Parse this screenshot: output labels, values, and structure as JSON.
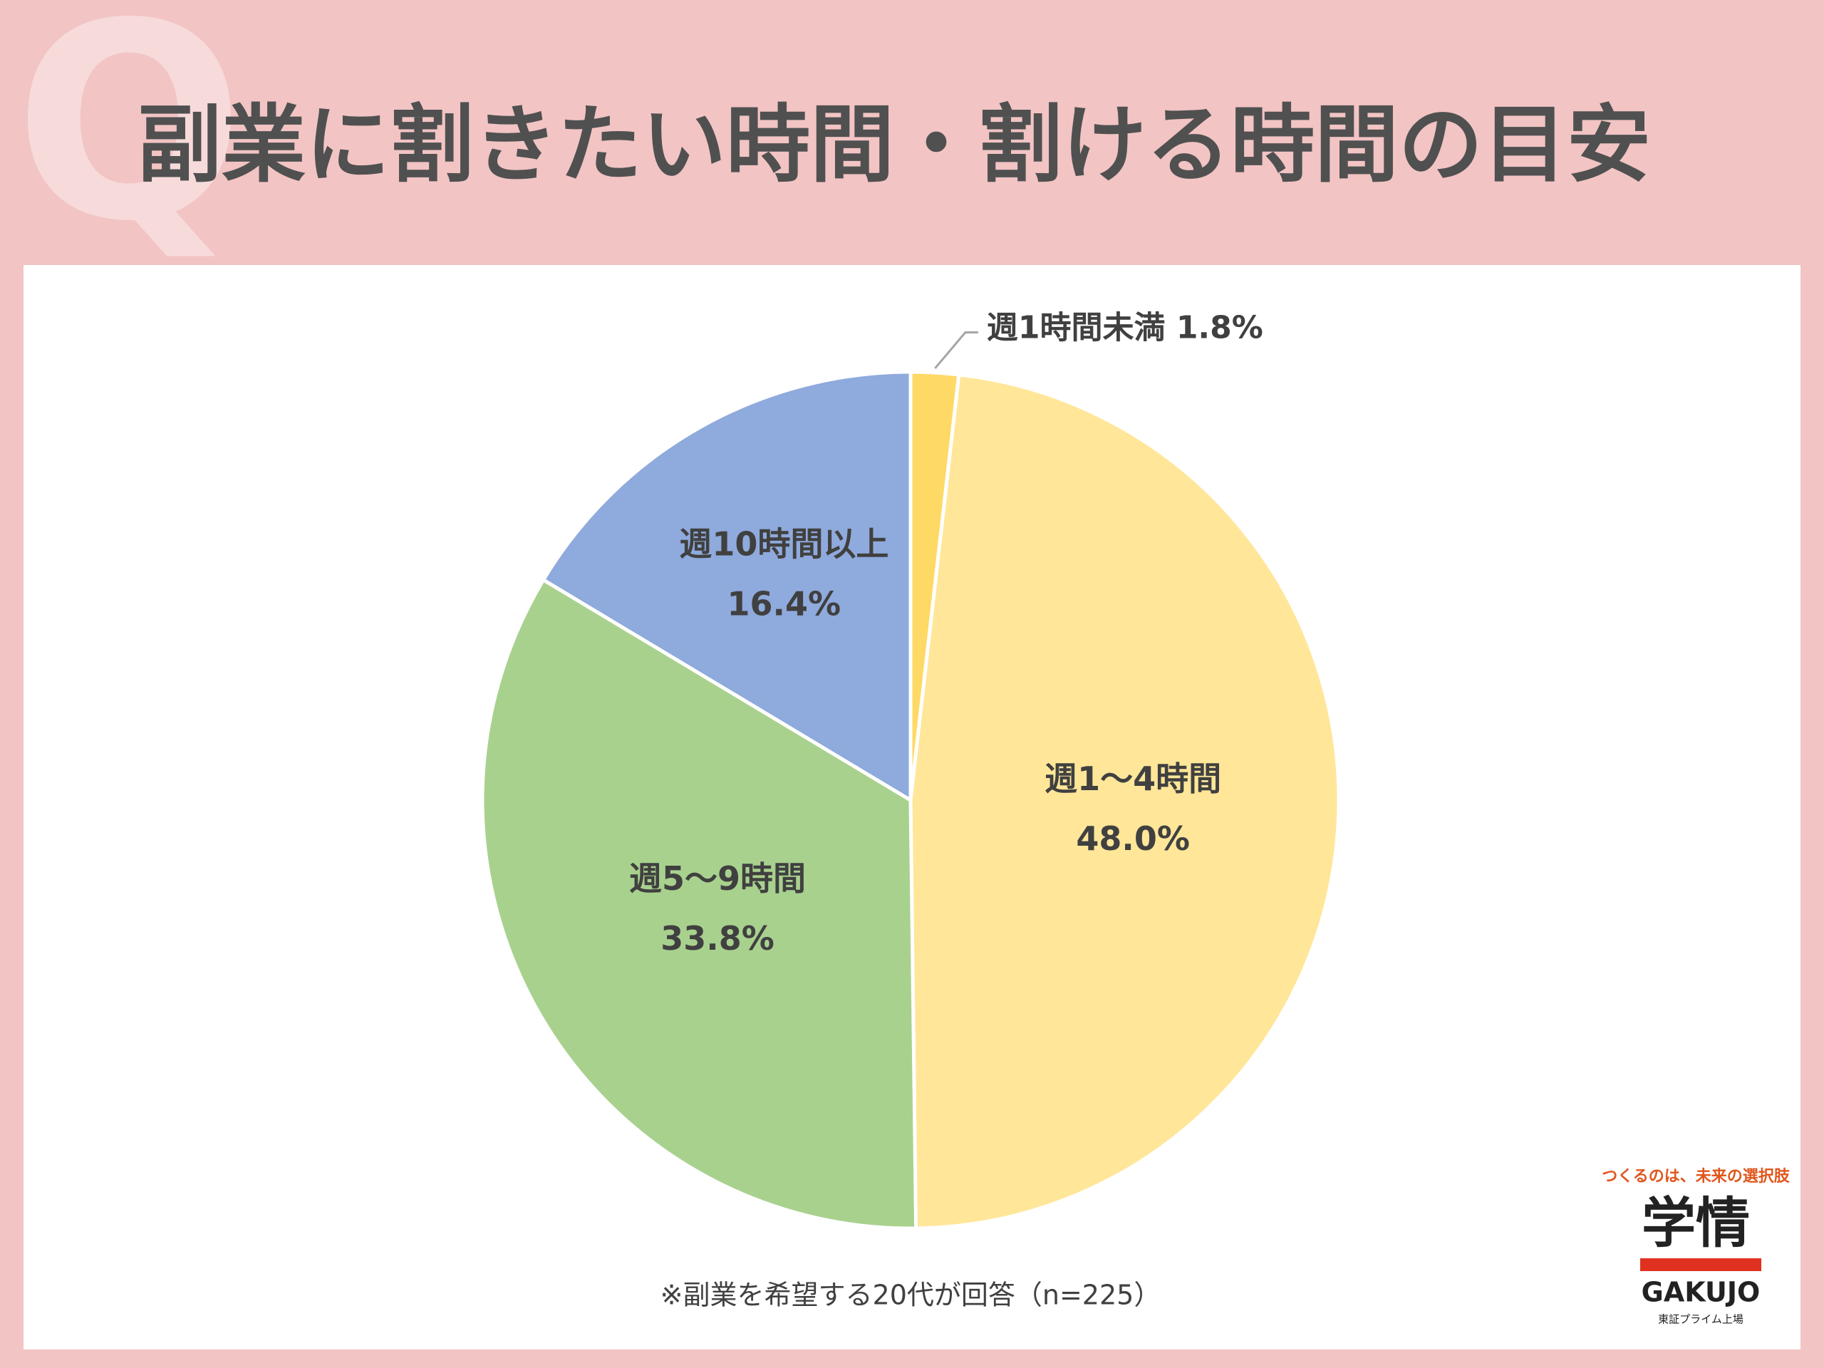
{
  "chart_data": {
    "type": "pie",
    "title_mark": "Q",
    "title": "副業に割きたい時間・割ける時間の目安",
    "categories": [
      "週1時間未満",
      "週1～4時間",
      "週5～9時間",
      "週10時間以上"
    ],
    "values": [
      1.8,
      48.0,
      33.8,
      16.4
    ],
    "value_labels": [
      "1.8%",
      "48.0%",
      "33.8%",
      "16.4%"
    ],
    "colors": [
      "#ffd966",
      "#ffe699",
      "#a9d18e",
      "#8faadc"
    ],
    "note": "※副業を希望する20代が回答（n=225）",
    "logo": {
      "tagline": "つくるのは、未来の選択肢",
      "name": "学情",
      "latin": "GAKUJO",
      "sub": "東証プライム上場"
    }
  }
}
